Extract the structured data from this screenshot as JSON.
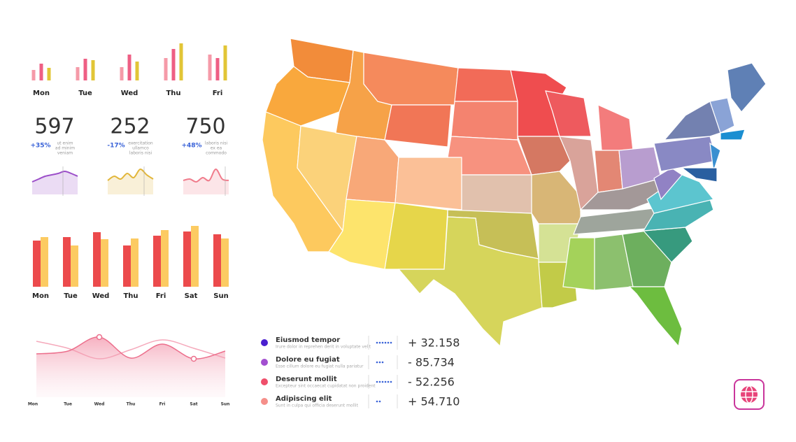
{
  "chart_data": [
    {
      "type": "bar",
      "categories": [
        "Mon",
        "Tue",
        "Wed",
        "Thu",
        "Fri"
      ],
      "series": [
        {
          "color": "#f59aa8",
          "values": [
            15,
            19,
            19,
            32,
            37
          ]
        },
        {
          "color": "#ee5f84",
          "values": [
            24,
            31,
            37,
            45,
            32
          ]
        },
        {
          "color": "#e2c536",
          "values": [
            18,
            29,
            27,
            53,
            50
          ]
        }
      ]
    },
    {
      "type": "bar",
      "categories": [
        "Mon",
        "Tue",
        "Wed",
        "Thu",
        "Fri",
        "Sat",
        "Sun"
      ],
      "series": [
        {
          "color": "#ec4a4c",
          "values": [
            66,
            71,
            78,
            59,
            73,
            79,
            75
          ]
        },
        {
          "color": "#fccb62",
          "values": [
            71,
            59,
            68,
            69,
            81,
            87,
            69
          ]
        }
      ]
    },
    {
      "type": "area",
      "categories": [
        "Mon",
        "Tue",
        "Wed",
        "Thu",
        "Fri",
        "Sat",
        "Sun"
      ],
      "series": [
        {
          "color": "#ec6f8c",
          "values": [
            62,
            66,
            86,
            56,
            76,
            55,
            66
          ]
        },
        {
          "color": "#f5a9bb",
          "values": [
            80,
            70,
            55,
            68,
            82,
            70,
            56
          ]
        }
      ]
    }
  ],
  "stats": [
    {
      "value": "597",
      "change": "+35%",
      "note": [
        "ut enim",
        "ad minim",
        "veniam"
      ],
      "color": "#9c4fc9",
      "spark": [
        18,
        22,
        26,
        28,
        30,
        33,
        30,
        26
      ]
    },
    {
      "value": "252",
      "change": "-17%",
      "note": [
        "exercitation",
        "ullamco",
        "laboris nisi"
      ],
      "color": "#e2b63a",
      "spark": [
        20,
        26,
        22,
        30,
        24,
        36,
        28,
        22
      ]
    },
    {
      "value": "750",
      "change": "+48%",
      "note": [
        "laboris nisi",
        "ex ea",
        "commodo"
      ],
      "color": "#f07c8c",
      "spark": [
        20,
        22,
        18,
        24,
        20,
        36,
        22,
        20
      ]
    }
  ],
  "legend": [
    {
      "title": "Eiusmod tempor",
      "subtitle": "Irure dolor in reprehen derit in voluptate velit",
      "dots": 6,
      "value": "+ 32.158",
      "color": "#4a1fcf"
    },
    {
      "title": "Dolore eu fugiat",
      "subtitle": "Esse cillum dolore eu fugiat nulla pariatur",
      "dots": 3,
      "value": "- 85.734",
      "color": "#a24fd0"
    },
    {
      "title": "Deserunt mollit",
      "subtitle": "Excepteur sint occaecat cupidatat non proident",
      "dots": 6,
      "value": "- 52.256",
      "color": "#ef4f6b"
    },
    {
      "title": "Adipiscing elit",
      "subtitle": "Sunt in culpa qui officia deserunt mollit",
      "dots": 2,
      "value": "+ 54.710",
      "color": "#f58f8a"
    }
  ]
}
